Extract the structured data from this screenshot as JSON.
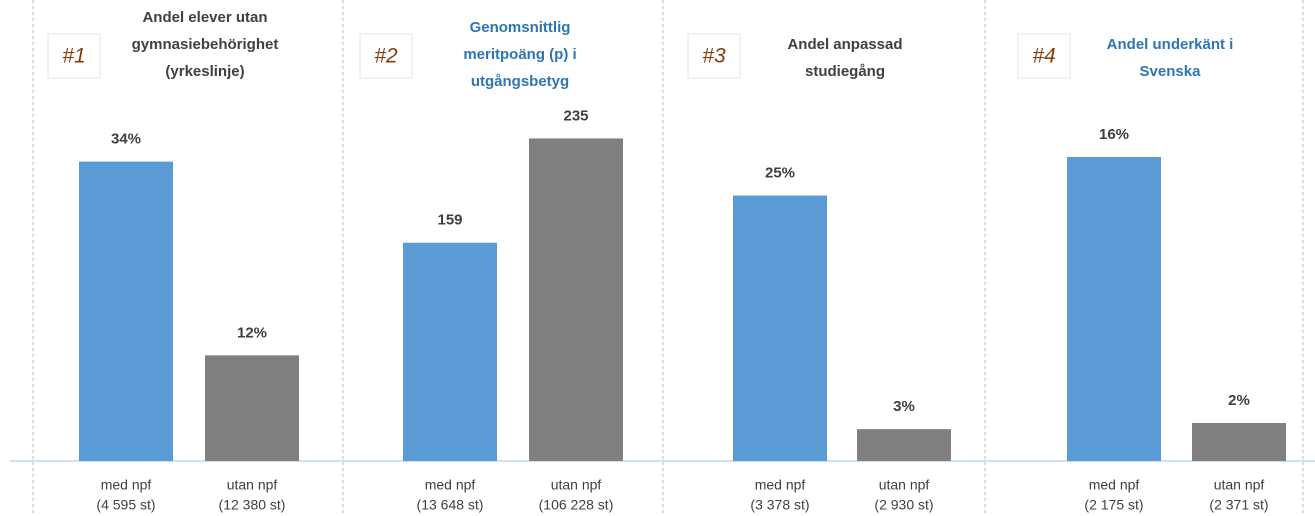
{
  "chart_data": [
    {
      "type": "bar",
      "number": "#1",
      "title": [
        "Andel elever utan",
        "gymnasiebehörighet",
        "(yrkeslinje)"
      ],
      "title_color": "#404040",
      "categories": [
        [
          "med npf",
          "(4 595 st)"
        ],
        [
          "utan npf",
          "(12 380 st)"
        ]
      ],
      "values": [
        34,
        12
      ],
      "value_labels": [
        "34%",
        "12%"
      ],
      "colors": [
        "#5b9bd5",
        "#808080"
      ],
      "ylim": [
        0,
        41
      ]
    },
    {
      "type": "bar",
      "number": "#2",
      "title": [
        "Genomsnittlig",
        "meritpoäng (p) i",
        "utgångsbetyg"
      ],
      "title_color": "#2e75b6",
      "categories": [
        [
          "med npf",
          "(13 648 st)"
        ],
        [
          "utan npf",
          "(106 228 st)"
        ]
      ],
      "values": [
        159,
        235
      ],
      "colors": [
        "#5b9bd5",
        "#808080"
      ],
      "ylim": [
        0,
        263
      ]
    },
    {
      "type": "bar",
      "number": "#3",
      "title": [
        "Andel anpassad",
        "studiegång"
      ],
      "title_color": "#404040",
      "categories": [
        [
          "med npf",
          "(3 378 st)"
        ],
        [
          "utan npf",
          "(2 930 st)"
        ]
      ],
      "values": [
        25,
        3
      ],
      "value_labels": [
        "25%",
        "3%"
      ],
      "colors": [
        "#5b9bd5",
        "#808080"
      ],
      "ylim": [
        0,
        34
      ]
    },
    {
      "type": "bar",
      "number": "#4",
      "title": [
        "Andel underkänt i",
        "Svenska"
      ],
      "title_color": "#2e75b6",
      "categories": [
        [
          "med npf",
          "(2 175 st)"
        ],
        [
          "utan npf",
          "(2 371 st)"
        ]
      ],
      "values": [
        16,
        2
      ],
      "value_labels": [
        "16%",
        "2%"
      ],
      "colors": [
        "#5b9bd5",
        "#808080"
      ],
      "ylim": [
        0,
        19
      ]
    }
  ]
}
